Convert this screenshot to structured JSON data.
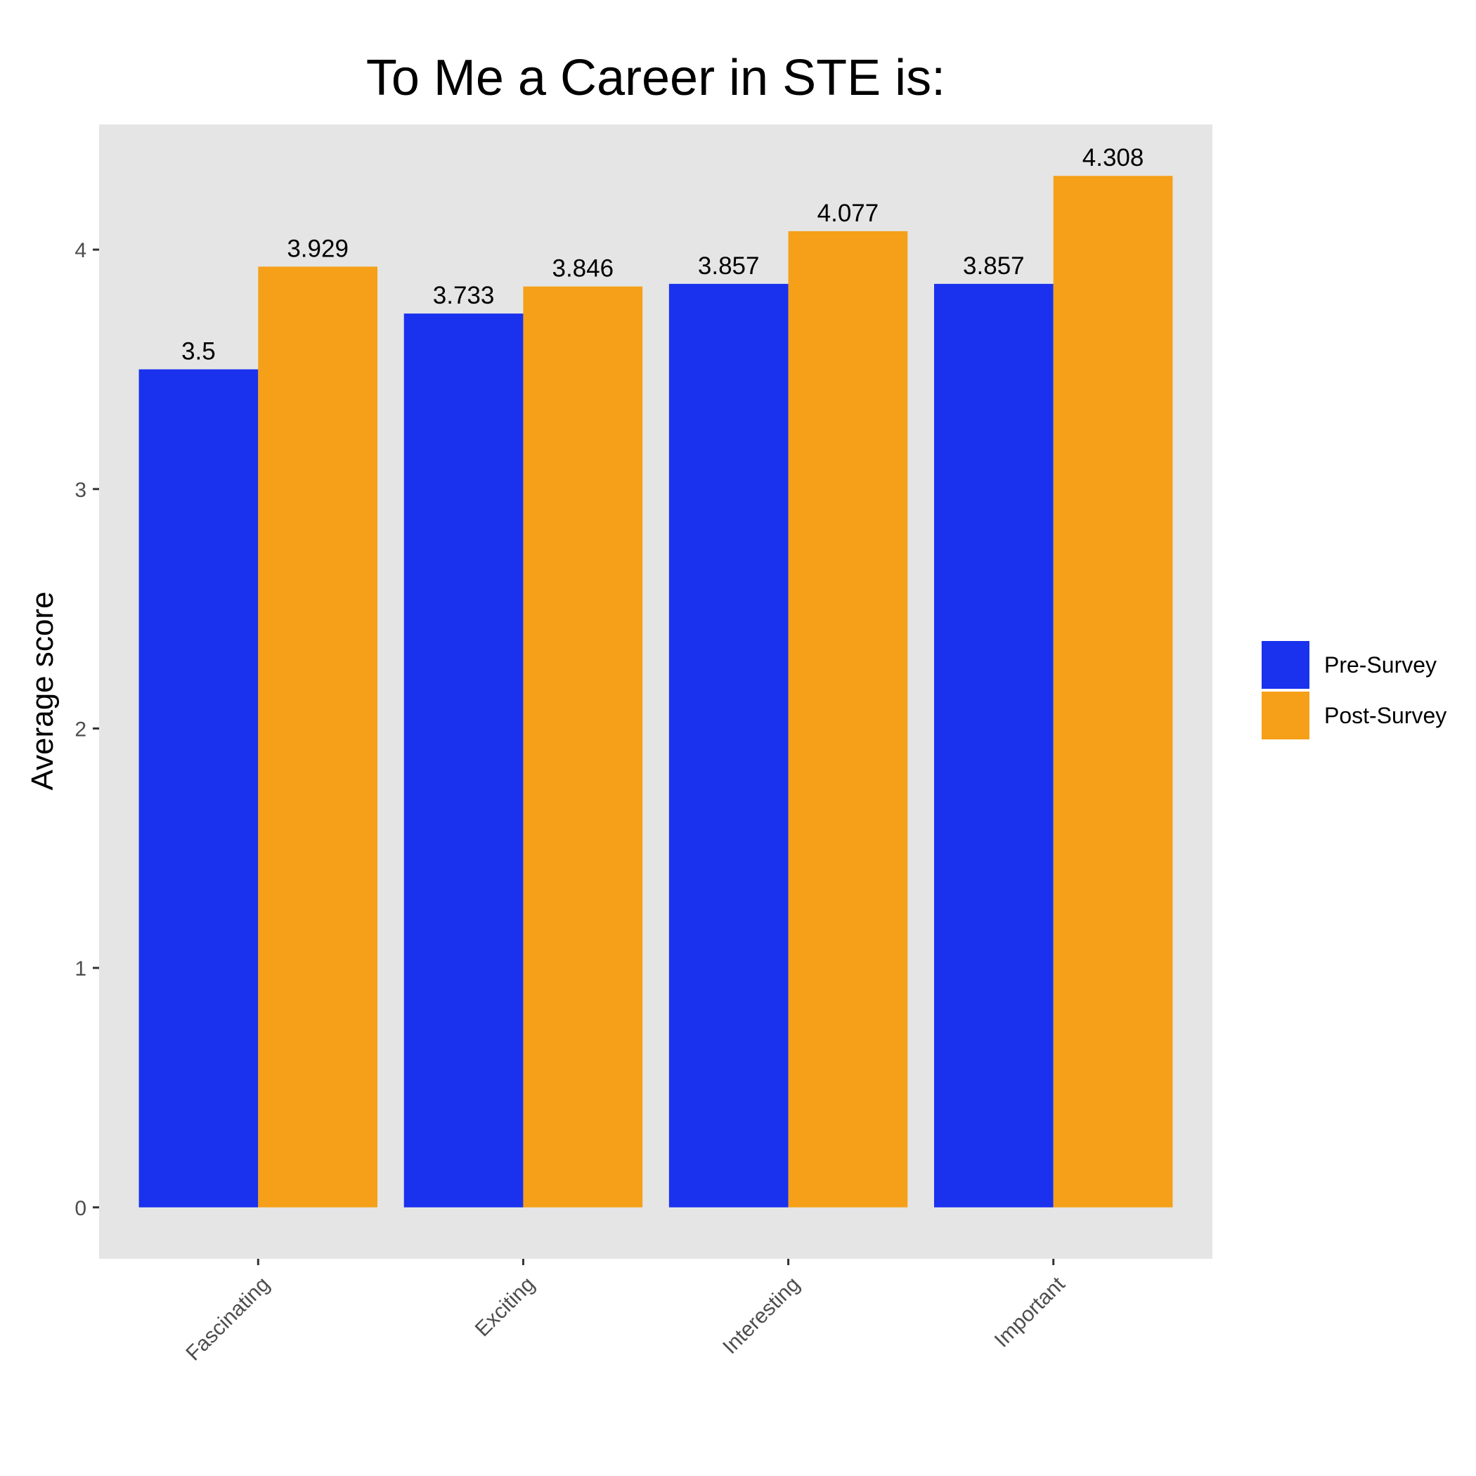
{
  "chart_data": {
    "type": "bar",
    "title": "To Me a Career in STE is:",
    "xlabel": "",
    "ylabel": "Average score",
    "categories": [
      "Fascinating",
      "Exciting",
      "Interesting",
      "Important"
    ],
    "series": [
      {
        "name": "Pre-Survey",
        "color": "#1A31EE",
        "values": [
          3.5,
          3.733,
          3.857,
          3.857
        ],
        "labels": [
          "3.5",
          "3.733",
          "3.857",
          "3.857"
        ]
      },
      {
        "name": "Post-Survey",
        "color": "#F5A018",
        "values": [
          3.929,
          3.846,
          4.077,
          4.308
        ],
        "labels": [
          "3.929",
          "3.846",
          "4.077",
          "4.308"
        ]
      }
    ],
    "ylim": [
      -0.215,
      4.523
    ],
    "yticks": [
      0,
      1,
      2,
      3,
      4
    ],
    "ytick_labels": [
      "0",
      "1",
      "2",
      "3",
      "4"
    ],
    "grid": false,
    "panel_color": "#E5E5E5",
    "legend_position": "right"
  }
}
